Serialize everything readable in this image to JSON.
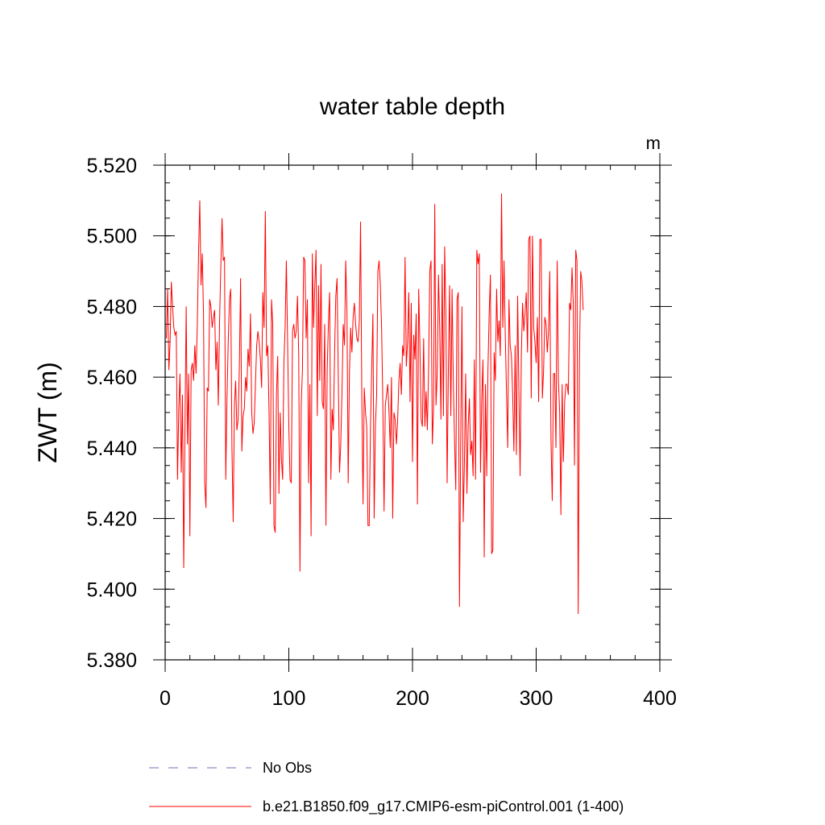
{
  "chart_data": {
    "type": "line",
    "title": "water table depth",
    "units_label": "m",
    "ylabel": "ZWT  (m)",
    "xlabel": "",
    "xlim": [
      0,
      400
    ],
    "ylim": [
      5.38,
      5.52
    ],
    "x_ticks": [
      0,
      100,
      200,
      300,
      400
    ],
    "x_tick_labels": [
      "0",
      "100",
      "200",
      "300",
      "400"
    ],
    "y_ticks": [
      5.38,
      5.4,
      5.42,
      5.44,
      5.46,
      5.48,
      5.5,
      5.52
    ],
    "y_tick_labels": [
      "5.380",
      "5.400",
      "5.420",
      "5.440",
      "5.460",
      "5.480",
      "5.500",
      "5.520"
    ],
    "grid": false,
    "legend_position": "bottom",
    "legend": [
      {
        "name": "No Obs",
        "color": "#6f6fb0",
        "style": "dashed"
      },
      {
        "name": "b.e21.B1850.f09_g17.CMIP6-esm-piControl.001 (1-400)",
        "color": "#ff0000",
        "style": "solid"
      }
    ],
    "series": [
      {
        "name": "b.e21.B1850.f09_g17.CMIP6-esm-piControl.001 (1-400)",
        "color": "#ff0000",
        "x_start": 1,
        "x_step": 1,
        "values": [
          5.471,
          5.485,
          5.462,
          5.47,
          5.487,
          5.48,
          5.474,
          5.472,
          5.473,
          5.431,
          5.451,
          5.461,
          5.433,
          5.455,
          5.406,
          5.445,
          5.48,
          5.441,
          5.461,
          5.415,
          5.462,
          5.464,
          5.459,
          5.469,
          5.461,
          5.475,
          5.495,
          5.51,
          5.486,
          5.495,
          5.478,
          5.43,
          5.423,
          5.457,
          5.456,
          5.482,
          5.48,
          5.474,
          5.477,
          5.479,
          5.462,
          5.47,
          5.452,
          5.476,
          5.491,
          5.505,
          5.493,
          5.494,
          5.431,
          5.454,
          5.47,
          5.482,
          5.485,
          5.44,
          5.419,
          5.452,
          5.459,
          5.445,
          5.448,
          5.463,
          5.488,
          5.439,
          5.449,
          5.451,
          5.46,
          5.456,
          5.468,
          5.463,
          5.478,
          5.45,
          5.444,
          5.447,
          5.458,
          5.469,
          5.473,
          5.47,
          5.465,
          5.457,
          5.484,
          5.474,
          5.507,
          5.466,
          5.469,
          5.45,
          5.424,
          5.482,
          5.475,
          5.418,
          5.416,
          5.455,
          5.466,
          5.427,
          5.45,
          5.437,
          5.431,
          5.464,
          5.474,
          5.493,
          5.47,
          5.446,
          5.431,
          5.43,
          5.473,
          5.475,
          5.471,
          5.473,
          5.483,
          5.466,
          5.405,
          5.452,
          5.462,
          5.494,
          5.493,
          5.471,
          5.482,
          5.43,
          5.458,
          5.415,
          5.495,
          5.474,
          5.486,
          5.496,
          5.449,
          5.486,
          5.459,
          5.492,
          5.453,
          5.451,
          5.475,
          5.418,
          5.462,
          5.475,
          5.484,
          5.431,
          5.451,
          5.445,
          5.467,
          5.483,
          5.488,
          5.46,
          5.433,
          5.441,
          5.456,
          5.475,
          5.469,
          5.493,
          5.479,
          5.43,
          5.461,
          5.474,
          5.467,
          5.477,
          5.481,
          5.475,
          5.471,
          5.47,
          5.476,
          5.504,
          5.455,
          5.424,
          5.457,
          5.45,
          5.446,
          5.418,
          5.418,
          5.445,
          5.462,
          5.478,
          5.42,
          5.446,
          5.455,
          5.49,
          5.493,
          5.486,
          5.474,
          5.453,
          5.422,
          5.452,
          5.455,
          5.458,
          5.45,
          5.44,
          5.46,
          5.42,
          5.45,
          5.448,
          5.441,
          5.448,
          5.459,
          5.464,
          5.455,
          5.469,
          5.466,
          5.494,
          5.463,
          5.47,
          5.484,
          5.453,
          5.481,
          5.436,
          5.472,
          5.465,
          5.478,
          5.424,
          5.485,
          5.469,
          5.448,
          5.446,
          5.471,
          5.446,
          5.456,
          5.445,
          5.462,
          5.49,
          5.493,
          5.441,
          5.451,
          5.509,
          5.452,
          5.461,
          5.489,
          5.474,
          5.448,
          5.492,
          5.449,
          5.497,
          5.478,
          5.43,
          5.462,
          5.486,
          5.449,
          5.485,
          5.459,
          5.442,
          5.428,
          5.482,
          5.484,
          5.395,
          5.443,
          5.48,
          5.419,
          5.436,
          5.461,
          5.427,
          5.446,
          5.454,
          5.438,
          5.442,
          5.432,
          5.465,
          5.431,
          5.496,
          5.492,
          5.495,
          5.433,
          5.454,
          5.465,
          5.409,
          5.458,
          5.432,
          5.462,
          5.478,
          5.489,
          5.41,
          5.411,
          5.467,
          5.459,
          5.485,
          5.47,
          5.476,
          5.466,
          5.512,
          5.474,
          5.493,
          5.472,
          5.456,
          5.44,
          5.482,
          5.469,
          5.466,
          5.455,
          5.439,
          5.469,
          5.438,
          5.483,
          5.457,
          5.432,
          5.466,
          5.481,
          5.473,
          5.478,
          5.484,
          5.467,
          5.499,
          5.5,
          5.454,
          5.5,
          5.474,
          5.47,
          5.464,
          5.477,
          5.453,
          5.499,
          5.499,
          5.454,
          5.462,
          5.477,
          5.475,
          5.467,
          5.473,
          5.49,
          5.442,
          5.425,
          5.461,
          5.461,
          5.44,
          5.493,
          5.459,
          5.45,
          5.421,
          5.458,
          5.436,
          5.453,
          5.458,
          5.458,
          5.455,
          5.481,
          5.479,
          5.491,
          5.481,
          5.435,
          5.496,
          5.493,
          5.393,
          5.465,
          5.49,
          5.487,
          5.479
        ]
      }
    ]
  }
}
